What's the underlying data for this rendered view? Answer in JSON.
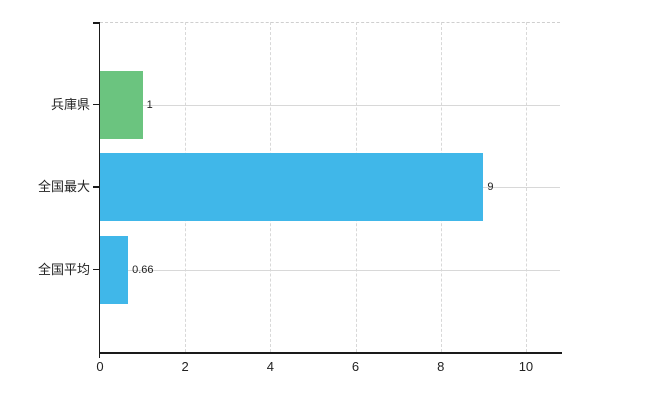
{
  "chart_data": {
    "type": "bar",
    "orientation": "horizontal",
    "title": "",
    "categories": [
      "兵庫県",
      "全国最大",
      "全国平均"
    ],
    "values": [
      1,
      9,
      0.66
    ],
    "value_labels": [
      "1",
      "9",
      "0.66"
    ],
    "bar_colors": [
      "#6bc47f",
      "#40b7e9",
      "#40b7e9"
    ],
    "xticks": [
      0,
      2,
      4,
      6,
      8,
      10
    ],
    "xtick_labels": [
      "0",
      "2",
      "4",
      "6",
      "8",
      "10"
    ],
    "xlim": [
      0,
      10.8
    ],
    "grid": {
      "vertical_style": "dashed",
      "horizontal_style": "solid",
      "color": "#d8d8d8",
      "top_border_style": "dashed"
    },
    "axis_color": "#1a1a1a",
    "text_color": "#222222",
    "background": "#ffffff",
    "legend": null
  }
}
